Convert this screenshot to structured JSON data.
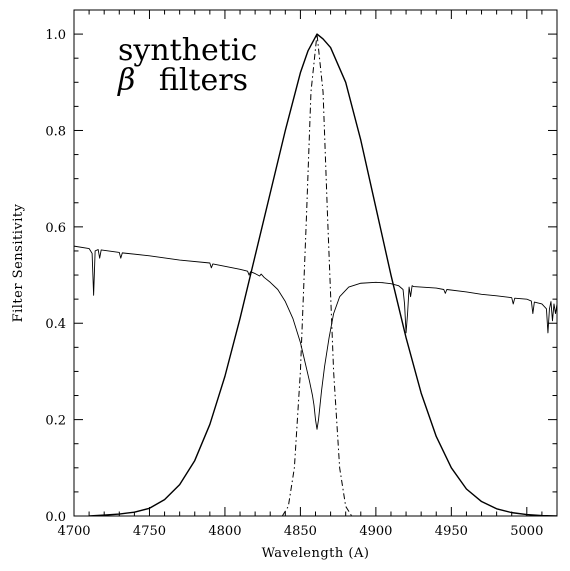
{
  "chart_data": {
    "type": "line",
    "title": "",
    "xlabel": "Wavelength (A)",
    "ylabel": "Filter Sensitivity",
    "xlim": [
      4700,
      5020
    ],
    "ylim": [
      0.0,
      1.05
    ],
    "x_ticks": [
      4700,
      4750,
      4800,
      4850,
      4900,
      4950,
      5000
    ],
    "y_ticks": [
      0.0,
      0.2,
      0.4,
      0.6,
      0.8,
      1.0
    ],
    "x_tick_labels": [
      "4700",
      "4750",
      "4800",
      "4850",
      "4900",
      "4950",
      "5000"
    ],
    "y_tick_labels": [
      "0.0",
      "0.2",
      "0.4",
      "0.6",
      "0.8",
      "1.0"
    ],
    "grid": false,
    "annotation": {
      "line1": "synthetic",
      "line2_symbol": "β",
      "line2_text": "filters"
    },
    "series": [
      {
        "style": "solid",
        "x": [
          4710,
          4720,
          4730,
          4740,
          4750,
          4760,
          4770,
          4780,
          4790,
          4800,
          4810,
          4820,
          4830,
          4840,
          4850,
          4855,
          4861,
          4865,
          4870,
          4880,
          4890,
          4900,
          4910,
          4920,
          4930,
          4940,
          4950,
          4960,
          4970,
          4980,
          4990,
          5000,
          5010,
          5020
        ],
        "y": [
          0.0,
          0.002,
          0.004,
          0.008,
          0.016,
          0.034,
          0.065,
          0.115,
          0.19,
          0.29,
          0.41,
          0.54,
          0.67,
          0.8,
          0.92,
          0.965,
          1.0,
          0.99,
          0.972,
          0.9,
          0.78,
          0.64,
          0.5,
          0.37,
          0.255,
          0.165,
          0.1,
          0.056,
          0.03,
          0.015,
          0.007,
          0.003,
          0.001,
          0.0
        ]
      },
      {
        "style": "dashdot",
        "x": [
          4838,
          4842,
          4846,
          4850,
          4854,
          4857,
          4861,
          4865,
          4868,
          4872,
          4876,
          4880,
          4884
        ],
        "y": [
          0.0,
          0.02,
          0.1,
          0.3,
          0.62,
          0.88,
          1.0,
          0.88,
          0.62,
          0.3,
          0.1,
          0.02,
          0.0
        ]
      },
      {
        "style": "thin",
        "x": [
          4700,
          4710,
          4712,
          4713,
          4714,
          4716,
          4717,
          4718,
          4730,
          4731,
          4732,
          4750,
          4770,
          4790,
          4791,
          4792,
          4800,
          4810,
          4815,
          4816,
          4817,
          4820,
          4823,
          4824,
          4826,
          4830,
          4835,
          4840,
          4845,
          4850,
          4853,
          4856,
          4858,
          4859,
          4860,
          4861,
          4862,
          4863,
          4864,
          4866,
          4869,
          4872,
          4876,
          4882,
          4890,
          4900,
          4905,
          4910,
          4915,
          4918,
          4919,
          4920,
          4921,
          4922,
          4923,
          4924,
          4925,
          4930,
          4940,
          4945,
          4946,
          4947,
          4960,
          4970,
          4980,
          4990,
          4991,
          4992,
          5000,
          5003,
          5004,
          5005,
          5010,
          5013,
          5014,
          5015,
          5016,
          5017,
          5018,
          5019,
          5020
        ],
        "y": [
          0.56,
          0.555,
          0.545,
          0.458,
          0.55,
          0.553,
          0.535,
          0.552,
          0.547,
          0.535,
          0.546,
          0.54,
          0.531,
          0.525,
          0.515,
          0.523,
          0.518,
          0.512,
          0.508,
          0.5,
          0.507,
          0.503,
          0.498,
          0.502,
          0.495,
          0.485,
          0.47,
          0.445,
          0.41,
          0.36,
          0.32,
          0.28,
          0.25,
          0.23,
          0.2,
          0.18,
          0.2,
          0.23,
          0.26,
          0.31,
          0.37,
          0.42,
          0.455,
          0.475,
          0.483,
          0.485,
          0.484,
          0.482,
          0.478,
          0.47,
          0.44,
          0.38,
          0.42,
          0.475,
          0.455,
          0.478,
          0.476,
          0.475,
          0.473,
          0.47,
          0.462,
          0.47,
          0.465,
          0.46,
          0.457,
          0.453,
          0.44,
          0.452,
          0.45,
          0.446,
          0.42,
          0.444,
          0.44,
          0.43,
          0.38,
          0.43,
          0.445,
          0.405,
          0.44,
          0.42,
          0.44
        ]
      }
    ]
  }
}
